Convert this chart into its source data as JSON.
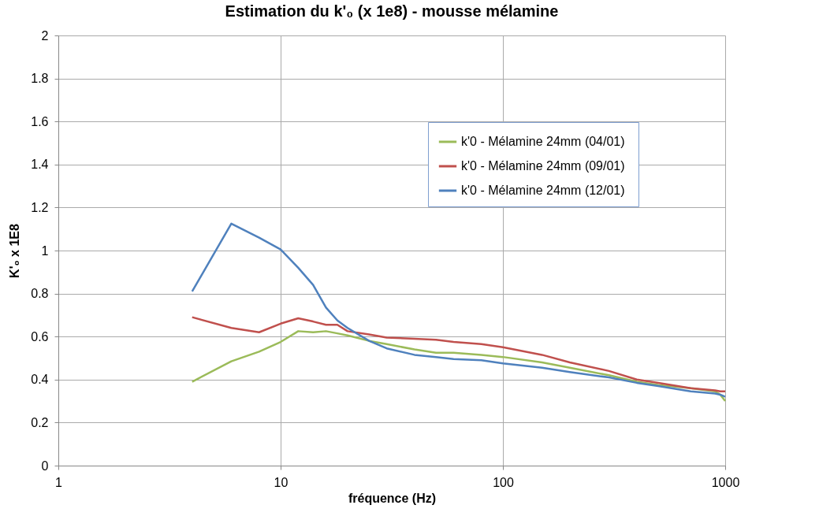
{
  "chart_data": {
    "type": "line",
    "title": "Estimation du k'₀ (x 1e8) - mousse mélamine",
    "xlabel": "fréquence (Hz)",
    "ylabel": "K'₀ x 1E8",
    "log": "x",
    "xlim": [
      1,
      1000
    ],
    "xticks": [
      1,
      10,
      100,
      1000
    ],
    "ylim": [
      0,
      2
    ],
    "yticks": [
      0,
      0.2,
      0.4,
      0.6,
      0.8,
      1,
      1.2,
      1.4,
      1.6,
      1.8,
      2
    ],
    "grid": true,
    "legend": "top right",
    "line_style": "solid",
    "marker": "none",
    "x": [
      4,
      6,
      8,
      10,
      12,
      14,
      16,
      18,
      20,
      25,
      30,
      40,
      50,
      60,
      80,
      100,
      150,
      200,
      300,
      400,
      500,
      700,
      900,
      950,
      1000
    ],
    "series": [
      {
        "name": "k'0 - Mélamine 24mm (04/01)",
        "color": "#9bbb59",
        "values": [
          0.39,
          0.485,
          0.53,
          0.575,
          0.625,
          0.62,
          0.625,
          0.615,
          0.605,
          0.58,
          0.565,
          0.54,
          0.525,
          0.525,
          0.515,
          0.505,
          0.48,
          0.455,
          0.42,
          0.39,
          0.375,
          0.36,
          0.345,
          0.33,
          0.3
        ]
      },
      {
        "name": "k'0 - Mélamine 24mm (09/01)",
        "color": "#c0504d",
        "values": [
          0.69,
          0.64,
          0.62,
          0.66,
          0.685,
          0.67,
          0.655,
          0.655,
          0.625,
          0.61,
          0.595,
          0.59,
          0.585,
          0.575,
          0.565,
          0.55,
          0.515,
          0.48,
          0.44,
          0.4,
          0.385,
          0.36,
          0.35,
          0.345,
          0.345
        ]
      },
      {
        "name": "k'0 - Mélamine 24mm  (12/01)",
        "color": "#4f81bd",
        "values": [
          0.81,
          1.125,
          1.06,
          1.005,
          0.92,
          0.84,
          0.735,
          0.675,
          0.64,
          0.58,
          0.545,
          0.515,
          0.505,
          0.495,
          0.49,
          0.475,
          0.455,
          0.435,
          0.41,
          0.385,
          0.37,
          0.345,
          0.335,
          0.33,
          0.32
        ]
      }
    ]
  }
}
